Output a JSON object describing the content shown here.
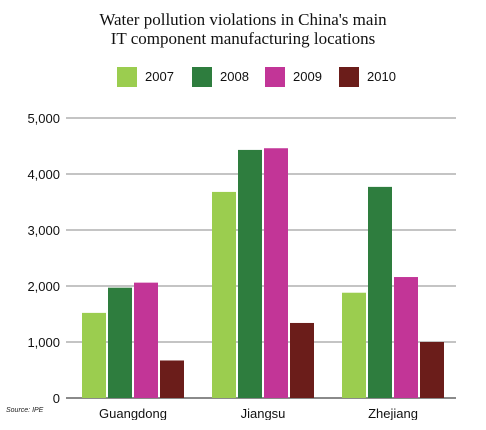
{
  "chart_data": {
    "type": "bar",
    "title": [
      "Water pollution violations in China's main",
      "IT component manufacturing locations"
    ],
    "categories": [
      "Guangdong",
      "Jiangsu",
      "Zhejiang"
    ],
    "series": [
      {
        "name": "2007",
        "color": "#9bcd4f",
        "values": [
          1520,
          3680,
          1880
        ]
      },
      {
        "name": "2008",
        "color": "#2e7d3e",
        "values": [
          1970,
          4430,
          3770
        ]
      },
      {
        "name": "2009",
        "color": "#c23597",
        "values": [
          2060,
          4460,
          2160
        ]
      },
      {
        "name": "2010",
        "color": "#6b1d1a",
        "values": [
          670,
          1340,
          1000
        ]
      }
    ],
    "yticks": [
      "0",
      "1,000",
      "2,000",
      "3,000",
      "4,000",
      "5,000"
    ],
    "ylim": [
      0,
      5000
    ],
    "grid": true,
    "legend_position": "top"
  },
  "source_note": "Source: IPE"
}
